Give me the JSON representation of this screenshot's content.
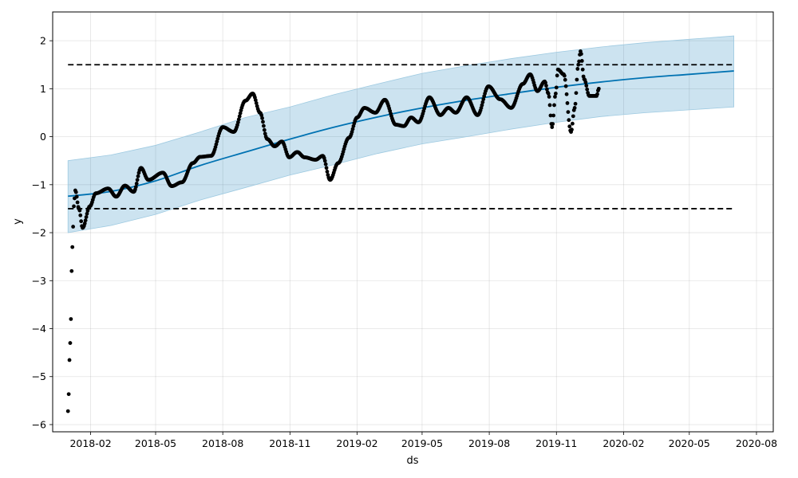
{
  "chart_data": {
    "type": "line",
    "title": "",
    "xlabel": "ds",
    "ylabel": "y",
    "xlim": [
      "2017-12-11",
      "2020-08-24"
    ],
    "ylim": [
      -6.15,
      2.6
    ],
    "grid": true,
    "x_ticks": [
      {
        "date": "2018-02-01",
        "label": "2018-02"
      },
      {
        "date": "2018-05-01",
        "label": "2018-05"
      },
      {
        "date": "2018-08-01",
        "label": "2018-08"
      },
      {
        "date": "2018-11-01",
        "label": "2018-11"
      },
      {
        "date": "2019-02-01",
        "label": "2019-02"
      },
      {
        "date": "2019-05-01",
        "label": "2019-05"
      },
      {
        "date": "2019-08-01",
        "label": "2019-08"
      },
      {
        "date": "2019-11-01",
        "label": "2019-11"
      },
      {
        "date": "2020-02-01",
        "label": "2020-02"
      },
      {
        "date": "2020-05-01",
        "label": "2020-05"
      },
      {
        "date": "2020-08-01",
        "label": "2020-08"
      }
    ],
    "y_ticks": [
      {
        "value": 2,
        "label": "2"
      },
      {
        "value": 1,
        "label": "1"
      },
      {
        "value": 0,
        "label": "0"
      },
      {
        "value": -1,
        "label": "−1"
      },
      {
        "value": -2,
        "label": "−2"
      },
      {
        "value": -3,
        "label": "−3"
      },
      {
        "value": -4,
        "label": "−4"
      },
      {
        "value": -5,
        "label": "−5"
      },
      {
        "value": -6,
        "label": "−6"
      }
    ],
    "caps": {
      "upper": 1.5,
      "lower": -1.5,
      "start": "2018-01-01",
      "end": "2020-07-01",
      "color": "#000000"
    },
    "forecast": {
      "color": "#0072B2",
      "band_color": "#0072B2",
      "points": [
        [
          "2018-01-01",
          -1.24,
          -2.0,
          -0.5
        ],
        [
          "2018-03-01",
          -1.14,
          -1.85,
          -0.38
        ],
        [
          "2018-05-01",
          -0.92,
          -1.62,
          -0.18
        ],
        [
          "2018-07-01",
          -0.6,
          -1.32,
          0.1
        ],
        [
          "2018-09-01",
          -0.32,
          -1.06,
          0.4
        ],
        [
          "2018-11-01",
          -0.05,
          -0.8,
          0.62
        ],
        [
          "2019-01-01",
          0.2,
          -0.58,
          0.88
        ],
        [
          "2019-03-01",
          0.41,
          -0.35,
          1.1
        ],
        [
          "2019-05-01",
          0.6,
          -0.15,
          1.32
        ],
        [
          "2019-07-01",
          0.76,
          0.0,
          1.48
        ],
        [
          "2019-09-01",
          0.9,
          0.16,
          1.63
        ],
        [
          "2019-11-01",
          1.03,
          0.3,
          1.76
        ],
        [
          "2020-01-01",
          1.14,
          0.42,
          1.87
        ],
        [
          "2020-03-01",
          1.23,
          0.5,
          1.96
        ],
        [
          "2020-05-01",
          1.3,
          0.56,
          2.03
        ],
        [
          "2020-07-01",
          1.37,
          0.62,
          2.1
        ]
      ]
    },
    "observed": {
      "color": "#000000",
      "knots": [
        [
          "2018-01-01",
          -5.72
        ],
        [
          "2018-01-04",
          -4.3
        ],
        [
          "2018-01-07",
          -2.3
        ],
        [
          "2018-01-09",
          -1.45
        ],
        [
          "2018-01-11",
          -1.12
        ],
        [
          "2018-01-16",
          -1.5
        ],
        [
          "2018-01-21",
          -1.9
        ],
        [
          "2018-01-31",
          -1.45
        ],
        [
          "2018-02-08",
          -1.18
        ],
        [
          "2018-02-25",
          -1.08
        ],
        [
          "2018-03-08",
          -1.25
        ],
        [
          "2018-03-20",
          -1.02
        ],
        [
          "2018-04-01",
          -1.15
        ],
        [
          "2018-04-11",
          -0.65
        ],
        [
          "2018-04-21",
          -0.9
        ],
        [
          "2018-05-11",
          -0.75
        ],
        [
          "2018-05-23",
          -1.03
        ],
        [
          "2018-06-06",
          -0.95
        ],
        [
          "2018-06-21",
          -0.55
        ],
        [
          "2018-07-01",
          -0.42
        ],
        [
          "2018-07-16",
          -0.4
        ],
        [
          "2018-08-01",
          0.2
        ],
        [
          "2018-08-16",
          0.1
        ],
        [
          "2018-09-01",
          0.75
        ],
        [
          "2018-09-11",
          0.9
        ],
        [
          "2018-09-21",
          0.5
        ],
        [
          "2018-10-01",
          -0.05
        ],
        [
          "2018-10-11",
          -0.2
        ],
        [
          "2018-10-21",
          -0.1
        ],
        [
          "2018-10-31",
          -0.43
        ],
        [
          "2018-11-11",
          -0.32
        ],
        [
          "2018-11-21",
          -0.43
        ],
        [
          "2018-12-06",
          -0.48
        ],
        [
          "2018-12-16",
          -0.4
        ],
        [
          "2018-12-26",
          -0.9
        ],
        [
          "2019-01-06",
          -0.55
        ],
        [
          "2019-01-21",
          -0.02
        ],
        [
          "2019-02-01",
          0.4
        ],
        [
          "2019-02-11",
          0.6
        ],
        [
          "2019-02-26",
          0.5
        ],
        [
          "2019-03-11",
          0.77
        ],
        [
          "2019-03-26",
          0.25
        ],
        [
          "2019-04-06",
          0.22
        ],
        [
          "2019-04-16",
          0.4
        ],
        [
          "2019-04-26",
          0.3
        ],
        [
          "2019-05-11",
          0.82
        ],
        [
          "2019-05-26",
          0.45
        ],
        [
          "2019-06-06",
          0.6
        ],
        [
          "2019-06-16",
          0.5
        ],
        [
          "2019-06-31",
          0.82
        ],
        [
          "2019-07-16",
          0.45
        ],
        [
          "2019-07-31",
          1.05
        ],
        [
          "2019-08-16",
          0.78
        ],
        [
          "2019-08-31",
          0.6
        ],
        [
          "2019-09-16",
          1.1
        ],
        [
          "2019-09-26",
          1.3
        ],
        [
          "2019-10-06",
          0.95
        ],
        [
          "2019-10-16",
          1.15
        ],
        [
          "2019-10-21",
          0.9
        ],
        [
          "2019-10-26",
          0.2
        ],
        [
          "2019-10-31",
          0.9
        ],
        [
          "2019-11-03",
          1.4
        ],
        [
          "2019-11-11",
          1.3
        ],
        [
          "2019-11-21",
          0.1
        ],
        [
          "2019-11-26",
          0.6
        ],
        [
          "2019-12-01",
          1.5
        ],
        [
          "2019-12-04",
          1.78
        ],
        [
          "2019-12-09",
          1.2
        ],
        [
          "2019-12-16",
          0.85
        ],
        [
          "2019-12-26",
          0.85
        ],
        [
          "2019-12-29",
          1.0
        ]
      ]
    }
  }
}
